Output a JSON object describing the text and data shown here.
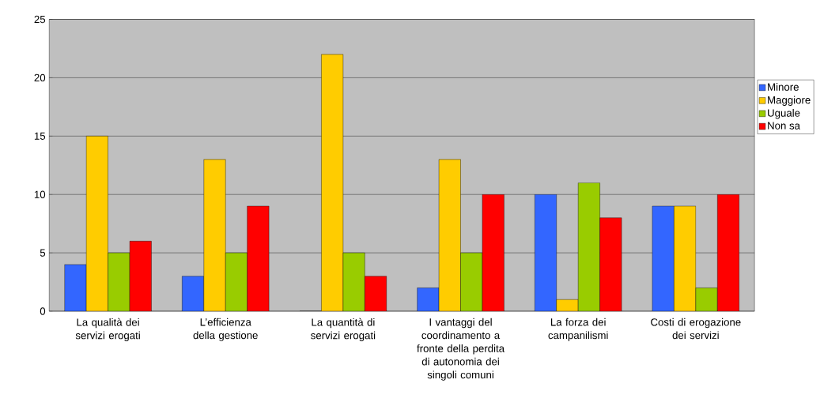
{
  "chart_data": {
    "type": "bar",
    "categories": [
      "La qualità dei servizi erogati",
      "L’efficienza della gestione",
      "La quantità di servizi erogati",
      "I vantaggi del coordinamento a fronte della perdita di autonomia dei singoli comuni",
      "La forza dei campanilismi",
      "Costi di erogazione dei servizi"
    ],
    "series": [
      {
        "name": "Minore",
        "color": "#3366ff",
        "values": [
          4,
          3,
          0,
          2,
          10,
          9
        ]
      },
      {
        "name": "Maggiore",
        "color": "#ffcc00",
        "values": [
          15,
          13,
          22,
          13,
          1,
          9
        ]
      },
      {
        "name": "Uguale",
        "color": "#99cc00",
        "values": [
          5,
          5,
          5,
          5,
          11,
          2
        ]
      },
      {
        "name": "Non sa",
        "color": "#ff0000",
        "values": [
          6,
          9,
          3,
          10,
          8,
          10
        ]
      }
    ],
    "ylim": [
      0,
      25
    ],
    "yticks": [
      0,
      5,
      10,
      15,
      20,
      25
    ],
    "grid": "y",
    "legend": "right"
  }
}
